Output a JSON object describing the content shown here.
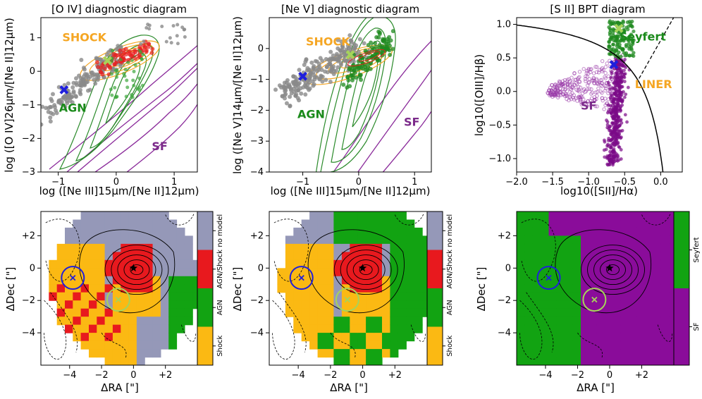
{
  "figure": {
    "top_row": [
      {
        "id": "oiv",
        "title": "[O IV] diagnostic diagram",
        "xlabel": "log ([Ne III]15μm/[Ne II]12μm)",
        "ylabel": "log ([O IV]26μm/[Ne II]12μm)",
        "xlim": [
          -1.3,
          1.4
        ],
        "ylim": [
          -3.0,
          1.6
        ],
        "xticks": [
          -1,
          0,
          1
        ],
        "yticks": [
          -3,
          -2,
          -1,
          0,
          1
        ],
        "region_labels": [
          {
            "text": "SHOCK",
            "x": -0.55,
            "y": 0.9,
            "color": "#f5a623"
          },
          {
            "text": "AGN",
            "x": -0.75,
            "y": -1.2,
            "color": "#1a8a1a"
          },
          {
            "text": "SF",
            "x": 0.75,
            "y": -2.35,
            "color": "#7b2a8a"
          }
        ],
        "markers": [
          {
            "name": "nucleus-1",
            "x": -0.9,
            "y": -0.55,
            "symbol": "X",
            "color": "#1f1fdc"
          },
          {
            "name": "nucleus-2",
            "x": -0.15,
            "y": 0.32,
            "symbol": "X",
            "color": "#a6d35a"
          }
        ]
      },
      {
        "id": "nev",
        "title": "[Ne V] diagnostic diagram",
        "xlabel": "log ([Ne III]15μm/[Ne II]12μm)",
        "ylabel": "log ([Ne V]14μm/[Ne II]12μm)",
        "xlim": [
          -1.6,
          1.3
        ],
        "ylim": [
          -4.0,
          1.0
        ],
        "xticks": [
          -1,
          0,
          1
        ],
        "yticks": [
          -4,
          -3,
          -2,
          -1,
          0
        ],
        "region_labels": [
          {
            "text": "SHOCK",
            "x": -0.55,
            "y": 0.1,
            "color": "#f5a623"
          },
          {
            "text": "AGN",
            "x": -0.85,
            "y": -2.25,
            "color": "#1a8a1a"
          },
          {
            "text": "SF",
            "x": 0.95,
            "y": -2.5,
            "color": "#7b2a8a"
          }
        ],
        "markers": [
          {
            "name": "nucleus-1",
            "x": -1.0,
            "y": -0.9,
            "symbol": "X",
            "color": "#1f1fdc"
          },
          {
            "name": "nucleus-2",
            "x": -0.15,
            "y": -0.2,
            "symbol": "X",
            "color": "#a6d35a"
          }
        ]
      },
      {
        "id": "sii",
        "title": "[S II] BPT diagram",
        "xlabel": "log10([SII]/Hα)",
        "ylabel": "log10([OIII]/Hβ)",
        "xlim": [
          -2.0,
          0.3
        ],
        "ylim": [
          -1.2,
          1.1
        ],
        "xticks": [
          -2.0,
          -1.5,
          -1.0,
          -0.5,
          0.0
        ],
        "xtick_labels": [
          "−2.0",
          "−1.5",
          "−1.0",
          "−0.5",
          "0.0"
        ],
        "yticks": [
          -1.0,
          -0.5,
          0.0,
          0.5,
          1.0
        ],
        "ytick_labels": [
          "−1.0",
          "−0.5",
          "0.0",
          "0.5",
          "1.0"
        ],
        "region_labels": [
          {
            "text": "Seyfert",
            "x": -0.25,
            "y": 0.76,
            "color": "#1a8a1a"
          },
          {
            "text": "LINER",
            "x": -0.1,
            "y": 0.05,
            "color": "#f5a623"
          },
          {
            "text": "SF",
            "x": -1.0,
            "y": -0.27,
            "color": "#7b2a8a"
          }
        ],
        "markers": [
          {
            "name": "nucleus-1",
            "x": -0.65,
            "y": 0.4,
            "symbol": "X",
            "color": "#1f1fdc"
          },
          {
            "name": "nucleus-2",
            "x": -0.58,
            "y": 0.94,
            "symbol": "X",
            "color": "#a6d35a"
          }
        ]
      }
    ],
    "bottom_row": [
      {
        "id": "map-oiv",
        "xlabel": "ΔRA [\"]",
        "ylabel": "ΔDec [\"]",
        "xticks": [
          "−4",
          "−2",
          "0",
          "+2"
        ],
        "yticks": [
          "+2",
          "0",
          "−2",
          "−4"
        ],
        "colorbar": [
          {
            "label": "no model",
            "color": "#9598b8"
          },
          {
            "label": "AGN/Shock",
            "color": "#e8191e"
          },
          {
            "label": "AGN",
            "color": "#12a312"
          },
          {
            "label": "Shock",
            "color": "#fbb913"
          }
        ]
      },
      {
        "id": "map-nev",
        "xlabel": "ΔRA [\"]",
        "ylabel": "ΔDec [\"]",
        "xticks": [
          "−4",
          "−2",
          "0",
          "+2"
        ],
        "yticks": [
          "+2",
          "0",
          "−2",
          "−4"
        ],
        "colorbar": [
          {
            "label": "no model",
            "color": "#9598b8"
          },
          {
            "label": "AGN/Shock",
            "color": "#e8191e"
          },
          {
            "label": "AGN",
            "color": "#12a312"
          },
          {
            "label": "Shock",
            "color": "#fbb913"
          }
        ]
      },
      {
        "id": "map-sii",
        "xlabel": "ΔRA [\"]",
        "ylabel": "ΔDec [\"]",
        "xticks": [
          "−4",
          "−2",
          "0",
          "+2"
        ],
        "yticks": [
          "+2",
          "0",
          "−2",
          "−4"
        ],
        "colorbar": [
          {
            "label": "Seyfert",
            "color": "#12a312"
          },
          {
            "label": "SF",
            "color": "#8a0c9a"
          }
        ]
      }
    ],
    "colors": {
      "agn_points": "#8a8a8a",
      "shock_contour": "#f5a623",
      "agn_contour": "#2a8a2a",
      "sf_contour": "#8a2a9a",
      "shock_points": "#e82020",
      "seyfert_points": "#1f8a1f",
      "sf_points": "#9a3aa8",
      "nucleus_1": "#1f1fdc",
      "nucleus_2": "#a6d35a"
    }
  },
  "chart_data": [
    {
      "type": "scatter",
      "title": "[O IV] diagnostic diagram",
      "xlabel": "log ([Ne III]15μm/[Ne II]12μm)",
      "ylabel": "log ([O IV]26μm/[Ne II]12μm)",
      "xlim": [
        -1.3,
        1.4
      ],
      "ylim": [
        -3.0,
        1.6
      ],
      "series": [
        {
          "name": "AGN-like spaxels (grey)",
          "x_range": [
            -1.2,
            0.1
          ],
          "y_range": [
            -1.2,
            0.6
          ]
        },
        {
          "name": "shock spaxels",
          "x_range": [
            -0.3,
            0.6
          ],
          "y_range": [
            0.0,
            0.9
          ]
        }
      ]
    },
    {
      "type": "scatter",
      "title": "[Ne V] diagnostic diagram",
      "xlabel": "log ([Ne III]15μm/[Ne II]12μm)",
      "ylabel": "log ([Ne V]14μm/[Ne II]12μm)",
      "xlim": [
        -1.6,
        1.3
      ],
      "ylim": [
        -4.0,
        1.0
      ],
      "series": [
        {
          "name": "AGN-like spaxels (grey)",
          "x_range": [
            -1.3,
            0.0
          ],
          "y_range": [
            -1.5,
            0.1
          ]
        },
        {
          "name": "green spaxels",
          "x_range": [
            -0.2,
            0.6
          ],
          "y_range": [
            -1.3,
            0.4
          ]
        }
      ]
    },
    {
      "type": "scatter",
      "title": "[S II] BPT diagram",
      "xlabel": "log10([SII]/Hα)",
      "ylabel": "log10([OIII]/Hβ)",
      "xlim": [
        -2.0,
        0.3
      ],
      "ylim": [
        -1.2,
        1.1
      ],
      "series": [
        {
          "name": "Seyfert spaxels",
          "x_range": [
            -0.7,
            -0.35
          ],
          "y_range": [
            0.5,
            1.05
          ]
        },
        {
          "name": "SF spaxels",
          "x_range": [
            -1.6,
            -0.45
          ],
          "y_range": [
            -1.1,
            0.6
          ]
        }
      ],
      "demarcation": "Kewley extreme starburst line and Seyfert/LINER line"
    }
  ]
}
